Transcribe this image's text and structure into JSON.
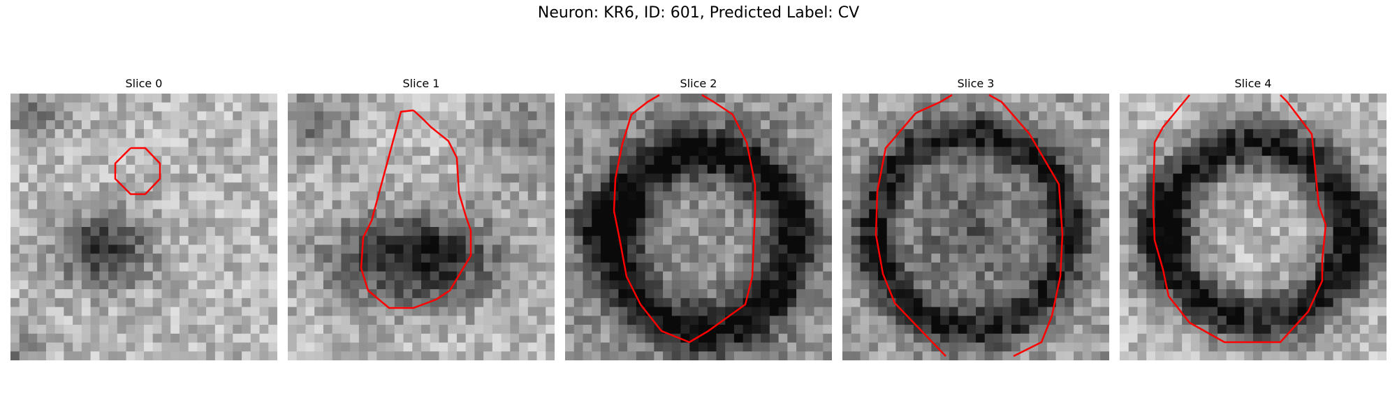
{
  "figure": {
    "title": "Neuron: KR6, ID: 601, Predicted Label: CV"
  },
  "panels": [
    {
      "title": "Slice 0"
    },
    {
      "title": "Slice 1"
    },
    {
      "title": "Slice 2"
    },
    {
      "title": "Slice 3"
    },
    {
      "title": "Slice 4"
    }
  ],
  "colors": {
    "contour": "#ff0000",
    "background": "#ffffff",
    "colormap": "grayscale"
  }
}
